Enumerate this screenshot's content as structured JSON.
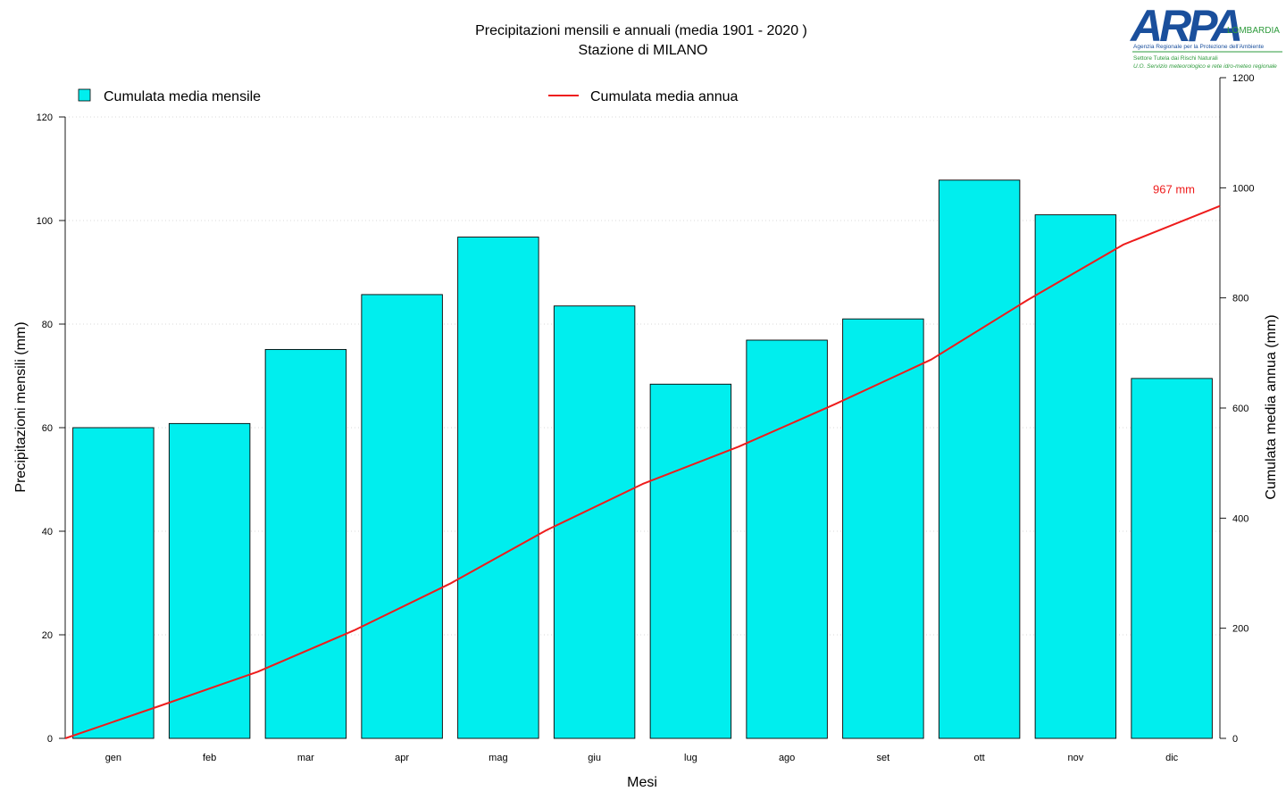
{
  "chart_data": {
    "type": "bar",
    "title": "Precipitazioni mensili e annuali (media 1901 - 2020 )",
    "subtitle": "Stazione di MILANO",
    "xlabel": "Mesi",
    "ylabel": "Precipitazioni mensili (mm)",
    "y2label": "Cumulata media annua (mm)",
    "categories": [
      "gen",
      "feb",
      "mar",
      "apr",
      "mag",
      "giu",
      "lug",
      "ago",
      "set",
      "ott",
      "nov",
      "dic"
    ],
    "ylim": [
      0,
      120
    ],
    "yticks": [
      0,
      20,
      40,
      60,
      80,
      100,
      120
    ],
    "y2lim": [
      0,
      1200
    ],
    "y2ticks": [
      0,
      200,
      400,
      600,
      800,
      1000,
      1200
    ],
    "grid": true,
    "legend_position": "top",
    "series": [
      {
        "name": "Cumulata media mensile",
        "type": "bar",
        "axis": "left",
        "color": "#00eeee",
        "values": [
          60.0,
          60.8,
          75.1,
          85.7,
          96.8,
          83.5,
          68.4,
          76.9,
          81.0,
          107.8,
          101.1,
          69.5
        ]
      },
      {
        "name": "Cumulata media annua",
        "type": "line",
        "axis": "right",
        "color": "#ee1c1c",
        "x": [
          0,
          1,
          2,
          3,
          4,
          5,
          6,
          7,
          8,
          9,
          10,
          11,
          12
        ],
        "values": [
          0,
          60,
          121,
          196,
          281,
          378,
          462,
          530,
          607,
          688,
          796,
          897,
          967
        ]
      }
    ],
    "annotations": [
      {
        "text": "967 mm",
        "color": "#ee1c1c"
      }
    ]
  },
  "logo": {
    "name": "ARPA",
    "suffix": "LOMBARDIA",
    "agency": "Agenzia Regionale per la Protezione dell'Ambiente",
    "sector": "Settore Tutela dai Rischi Naturali",
    "unit": "U.O. Servizio meteorologico e rete idro-meteo regionale",
    "blue": "#1a4f9c",
    "green": "#2e9b3c"
  }
}
